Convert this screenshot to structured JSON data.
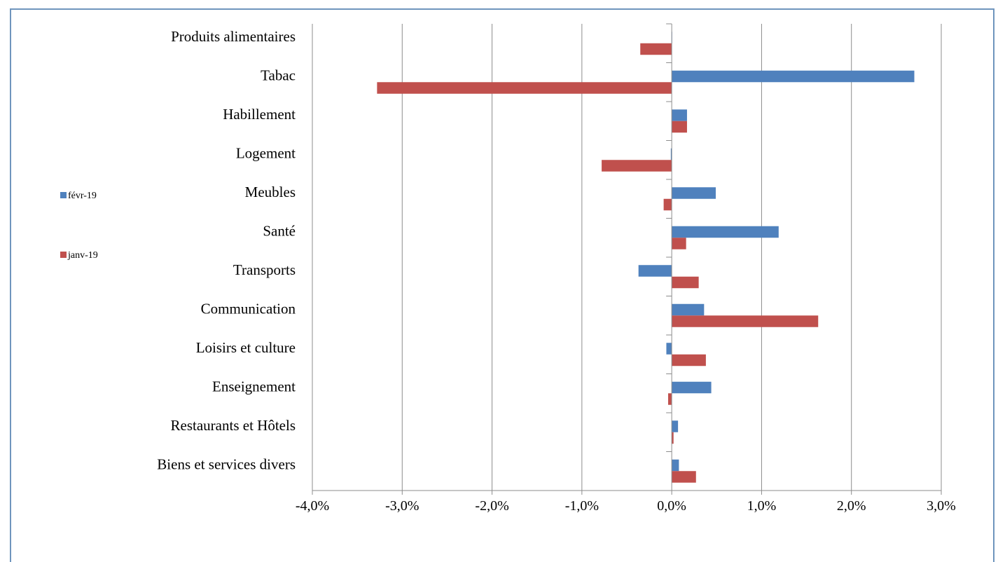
{
  "chart_data": {
    "type": "bar",
    "orientation": "horizontal",
    "categories": [
      "Produits alimentaires",
      "Tabac",
      "Habillement",
      "Logement",
      "Meubles",
      "Santé",
      "Transports",
      "Communication",
      "Loisirs et culture",
      "Enseignement",
      "Restaurants et Hôtels",
      "Biens et services divers"
    ],
    "series": [
      {
        "name": "févr-19",
        "color": "#4f81bd",
        "values": [
          0.0,
          2.7,
          0.17,
          -0.01,
          0.49,
          1.19,
          -0.37,
          0.36,
          -0.06,
          0.44,
          0.07,
          0.08
        ]
      },
      {
        "name": "janv-19",
        "color": "#c0504d",
        "values": [
          -0.35,
          -3.28,
          0.17,
          -0.78,
          -0.09,
          0.16,
          0.3,
          1.63,
          0.38,
          -0.04,
          0.02,
          0.27
        ]
      }
    ],
    "xlim": [
      -4.0,
      3.0
    ],
    "xticks": [
      -4.0,
      -3.0,
      -2.0,
      -1.0,
      0.0,
      1.0,
      2.0,
      3.0
    ],
    "xtick_labels": [
      "-4,0%",
      "-3,0%",
      "-2,0%",
      "-1,0%",
      "0,0%",
      "1,0%",
      "2,0%",
      "3,0%"
    ],
    "grid": "vertical",
    "legend_placement": "left",
    "title": "",
    "xlabel": "",
    "ylabel": ""
  }
}
